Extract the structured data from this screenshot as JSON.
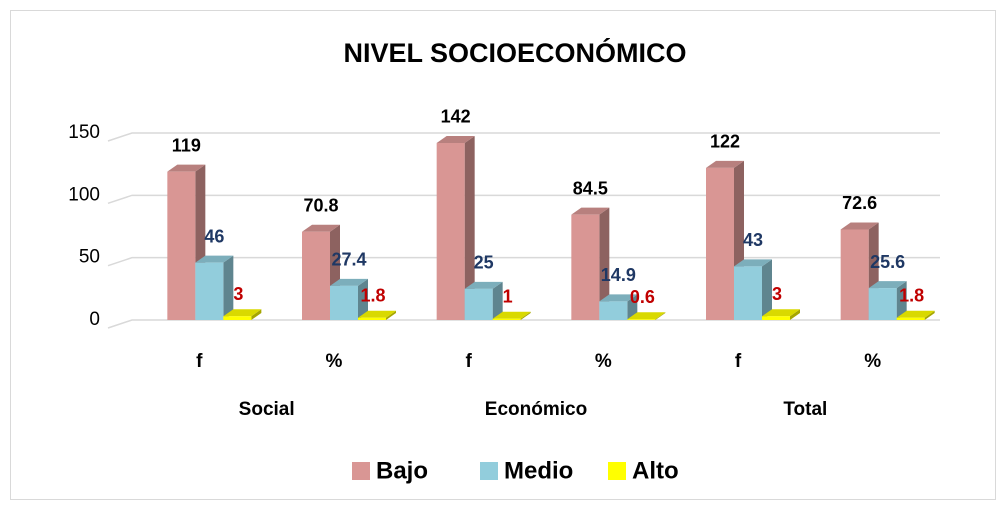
{
  "chart_data": {
    "type": "bar3d",
    "title": "NIVEL SOCIOECONÓMICO",
    "categories": [
      "f",
      "%",
      "f",
      "%",
      "f",
      "%"
    ],
    "groups": [
      "Social",
      "Económico",
      "Total"
    ],
    "series": [
      {
        "name": "Bajo",
        "color": "#d99694",
        "label_color": "#000000",
        "values": [
          119,
          70.8,
          142,
          84.5,
          122,
          72.6
        ]
      },
      {
        "name": "Medio",
        "color": "#92cddc",
        "label_color": "#1f3864",
        "values": [
          46,
          27.4,
          25,
          14.9,
          43,
          25.6
        ]
      },
      {
        "name": "Alto",
        "color": "#ffff00",
        "label_color": "#c00000",
        "values": [
          3,
          1.8,
          1,
          0.6,
          3,
          1.8
        ]
      }
    ],
    "ylim": [
      0,
      150
    ],
    "yticks": [
      0,
      50,
      100,
      150
    ],
    "grid": true,
    "legend": "bottom"
  }
}
